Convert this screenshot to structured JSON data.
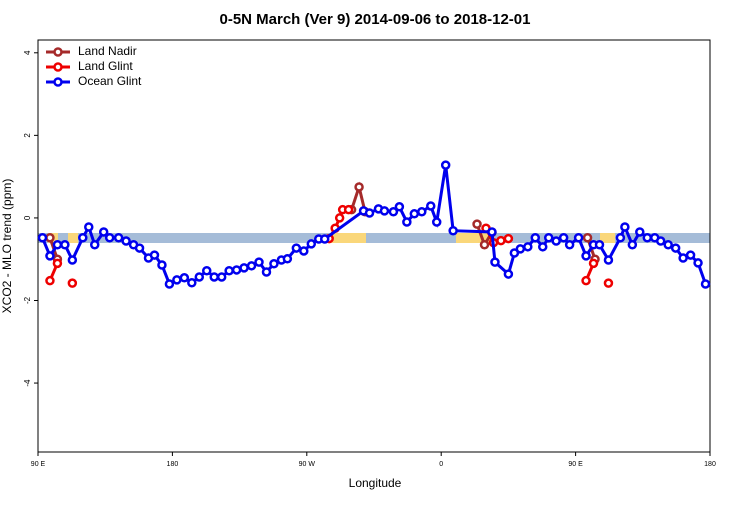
{
  "chart_data": {
    "type": "line",
    "title": "0-5N March (Ver 9)   2014-09-06 to 2018-12-01",
    "x_label": "Longitude",
    "y_label": "XCO2 - MLO trend (ppm)",
    "xlim": [
      90,
      540
    ],
    "xticks": [
      {
        "value": 90,
        "label": "90 E"
      },
      {
        "value": 180,
        "label": "180"
      },
      {
        "value": 270,
        "label": "90 W"
      },
      {
        "value": 360,
        "label": "0"
      },
      {
        "value": 450,
        "label": "90 E"
      },
      {
        "value": 540,
        "label": "180"
      }
    ],
    "ylim": [
      -5.67,
      4.31
    ],
    "yticks": [
      -4,
      -2,
      0,
      2,
      4
    ],
    "legend": "top-left",
    "series": [
      {
        "name": "Land Nadir",
        "color": "#a52a2a",
        "x": [
          98,
          103,
          null,
          300,
          305,
          309,
          null,
          384,
          389,
          394,
          null,
          458,
          463
        ],
        "values": [
          -0.48,
          -1.0,
          null,
          0.2,
          0.75,
          0.15,
          null,
          -0.15,
          -0.65,
          -0.35,
          null,
          -0.48,
          -1.0
        ]
      },
      {
        "name": "Land Glint",
        "color": "#ee0000",
        "x": [
          98,
          103,
          null,
          113,
          null,
          285,
          289,
          292,
          294,
          298,
          null,
          390,
          395,
          400,
          405,
          null,
          457,
          462,
          null,
          472
        ],
        "values": [
          -1.52,
          -1.1,
          null,
          -1.58,
          null,
          -0.5,
          -0.25,
          0.0,
          0.2,
          0.2,
          null,
          -0.25,
          -0.6,
          -0.55,
          -0.5,
          null,
          -1.52,
          -1.1,
          null,
          -1.58
        ]
      },
      {
        "name": "Ocean Glint",
        "color": "#0000ee",
        "x": [
          93,
          98,
          103,
          108,
          113,
          120,
          124,
          128,
          134,
          138,
          144,
          149,
          154,
          158,
          164,
          168,
          173,
          178,
          183,
          188,
          193,
          198,
          203,
          208,
          213,
          218,
          223,
          228,
          233,
          238,
          243,
          248,
          253,
          257,
          263,
          268,
          273,
          278,
          282,
          308,
          312,
          318,
          322,
          328,
          332,
          337,
          342,
          347,
          353,
          357,
          363,
          368,
          394,
          396,
          405,
          409,
          413,
          418,
          423,
          428,
          432,
          437,
          442,
          446,
          452,
          457,
          462,
          466,
          472,
          480,
          483,
          488,
          493,
          498,
          503,
          507,
          512,
          517,
          522,
          527,
          532,
          537
        ],
        "values": [
          -0.48,
          -0.92,
          -0.65,
          -0.65,
          -1.02,
          -0.48,
          -0.22,
          -0.65,
          -0.34,
          -0.48,
          -0.48,
          -0.56,
          -0.65,
          -0.73,
          -0.97,
          -0.9,
          -1.14,
          -1.6,
          -1.5,
          -1.45,
          -1.57,
          -1.43,
          -1.28,
          -1.43,
          -1.43,
          -1.28,
          -1.26,
          -1.21,
          -1.16,
          -1.07,
          -1.31,
          -1.11,
          -1.02,
          -0.99,
          -0.73,
          -0.8,
          -0.63,
          -0.51,
          -0.51,
          0.17,
          0.12,
          0.22,
          0.17,
          0.15,
          0.27,
          -0.1,
          0.1,
          0.15,
          0.29,
          -0.1,
          1.28,
          -0.31,
          -0.34,
          -1.07,
          -1.36,
          -0.85,
          -0.75,
          -0.7,
          -0.48,
          -0.7,
          -0.48,
          -0.56,
          -0.48,
          -0.65,
          -0.48,
          -0.92,
          -0.65,
          -0.65,
          -1.02,
          -0.48,
          -0.22,
          -0.65,
          -0.34,
          -0.48,
          -0.48,
          -0.56,
          -0.65,
          -0.73,
          -0.97,
          -0.9,
          -1.09,
          -1.6
        ]
      }
    ]
  }
}
